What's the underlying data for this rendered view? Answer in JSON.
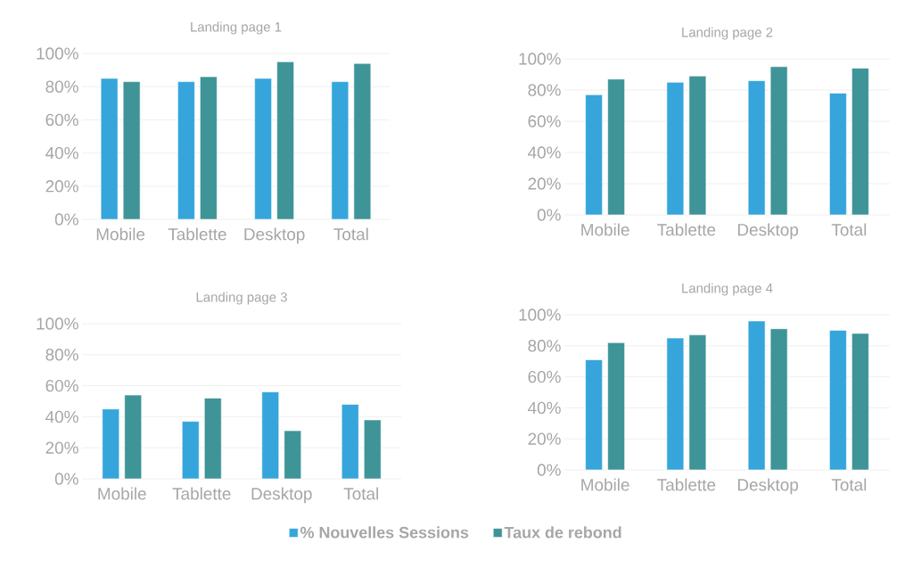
{
  "chart_data": [
    {
      "type": "bar",
      "title": "Landing page 1",
      "categories": [
        "Mobile",
        "Tablette",
        "Desktop",
        "Total"
      ],
      "series": [
        {
          "color": "#35a5dc",
          "values": [
            85,
            83,
            85,
            83
          ]
        },
        {
          "color": "#3e9497",
          "values": [
            83,
            86,
            95,
            94
          ]
        }
      ],
      "ylim": [
        0,
        100
      ],
      "yticks": [
        {
          "value": 0,
          "label": "0%"
        },
        {
          "value": 20,
          "label": "20%"
        },
        {
          "value": 40,
          "label": "40%"
        },
        {
          "value": 60,
          "label": "60%"
        },
        {
          "value": 80,
          "label": "80%"
        },
        {
          "value": 100,
          "label": "100%"
        }
      ],
      "grid": "y"
    },
    {
      "type": "bar",
      "title": "Landing page 2",
      "categories": [
        "Mobile",
        "Tablette",
        "Desktop",
        "Total"
      ],
      "series": [
        {
          "color": "#35a5dc",
          "values": [
            77,
            85,
            86,
            78
          ]
        },
        {
          "color": "#3e9497",
          "values": [
            87,
            89,
            95,
            94
          ]
        }
      ],
      "ylim": [
        0,
        100
      ],
      "yticks": [
        {
          "value": 0,
          "label": "0%"
        },
        {
          "value": 20,
          "label": "20%"
        },
        {
          "value": 40,
          "label": "40%"
        },
        {
          "value": 60,
          "label": "60%"
        },
        {
          "value": 80,
          "label": "80%"
        },
        {
          "value": 100,
          "label": "100%"
        }
      ],
      "grid": "y"
    },
    {
      "type": "bar",
      "title": "Landing page 3",
      "categories": [
        "Mobile",
        "Tablette",
        "Desktop",
        "Total"
      ],
      "series": [
        {
          "color": "#35a5dc",
          "values": [
            45,
            37,
            56,
            48
          ]
        },
        {
          "color": "#3e9497",
          "values": [
            54,
            52,
            31,
            38
          ]
        }
      ],
      "ylim": [
        0,
        100
      ],
      "yticks": [
        {
          "value": 0,
          "label": "0%"
        },
        {
          "value": 20,
          "label": "20%"
        },
        {
          "value": 40,
          "label": "40%"
        },
        {
          "value": 60,
          "label": "60%"
        },
        {
          "value": 80,
          "label": "80%"
        },
        {
          "value": 100,
          "label": "100%"
        }
      ],
      "grid": "y"
    },
    {
      "type": "bar",
      "title": "Landing page 4",
      "categories": [
        "Mobile",
        "Tablette",
        "Desktop",
        "Total"
      ],
      "series": [
        {
          "name": "% Nouvelles Sessions",
          "color": "#35a5dc",
          "values": [
            71,
            85,
            96,
            90
          ]
        },
        {
          "name": "Taux de rebond",
          "color": "#3e9497",
          "values": [
            82,
            87,
            91,
            88
          ]
        }
      ],
      "ylim": [
        0,
        100
      ],
      "yticks": [
        {
          "value": 0,
          "label": "0%"
        },
        {
          "value": 20,
          "label": "20%"
        },
        {
          "value": 40,
          "label": "40%"
        },
        {
          "value": 60,
          "label": "60%"
        },
        {
          "value": 80,
          "label": "80%"
        },
        {
          "value": 100,
          "label": "100%"
        }
      ],
      "grid": "y",
      "legend": "bottom"
    }
  ]
}
